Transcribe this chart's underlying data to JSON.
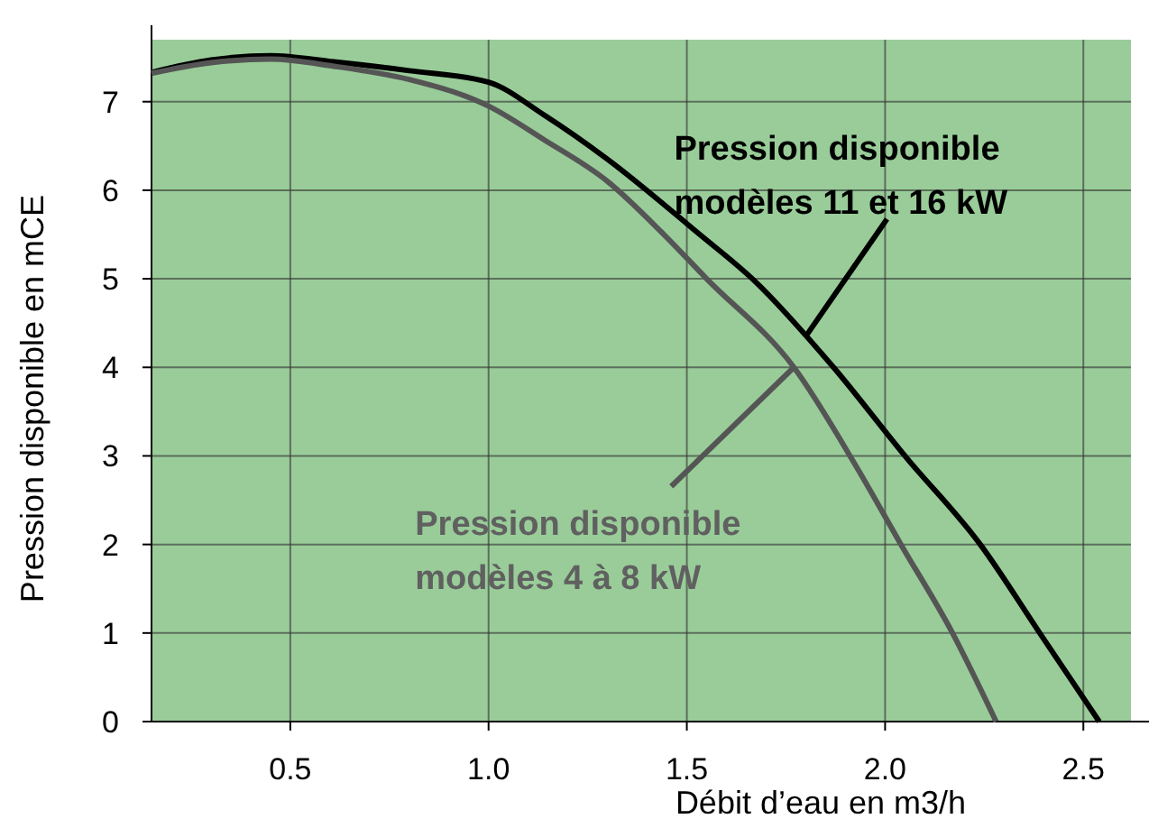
{
  "chart_data": {
    "type": "line",
    "xlabel": "Débit d’eau en m3/h",
    "ylabel": "Pression disponible en mCE",
    "xlim": [
      0.15,
      2.62
    ],
    "ylim": [
      0,
      7.7
    ],
    "xticks": [
      {
        "value": 0.5,
        "label": "0.5"
      },
      {
        "value": 1,
        "label": "1.0"
      },
      {
        "value": 1.5,
        "label": "1.5"
      },
      {
        "value": 2,
        "label": "2.0"
      },
      {
        "value": 2.5,
        "label": "2.5"
      }
    ],
    "yticks": [
      0,
      1,
      2,
      3,
      4,
      5,
      6,
      7
    ],
    "grid": true,
    "marker": "none",
    "line_style": "solid",
    "series": [
      {
        "color": "#000000",
        "x": [
          0.15,
          0.3,
          0.45,
          0.61,
          0.8,
          1.0,
          1.14,
          1.3,
          1.53,
          1.67,
          1.87,
          2.05,
          2.24,
          2.39,
          2.54
        ],
        "values": [
          7.33,
          7.47,
          7.52,
          7.45,
          7.35,
          7.22,
          6.85,
          6.35,
          5.51,
          4.98,
          4.0,
          3.0,
          2.0,
          1.0,
          0
        ]
      },
      {
        "color": "#555555",
        "x": [
          0.15,
          0.3,
          0.45,
          0.61,
          0.8,
          1.0,
          1.14,
          1.3,
          1.44,
          1.55,
          1.77,
          1.93,
          2.04,
          2.17,
          2.28
        ],
        "values": [
          7.32,
          7.44,
          7.48,
          7.4,
          7.25,
          6.95,
          6.57,
          6.1,
          5.51,
          5.0,
          4.0,
          2.86,
          2.0,
          1.0,
          0
        ]
      }
    ],
    "annotations": [
      {
        "text": "Pression disponible\nmodèles 11 et 16 kW",
        "x": 1.8,
        "y": 4.35
      },
      {
        "text": "Pression disponible\nmodèles 4 à 8 kW",
        "x": 1.77,
        "y": 4.0
      }
    ]
  }
}
